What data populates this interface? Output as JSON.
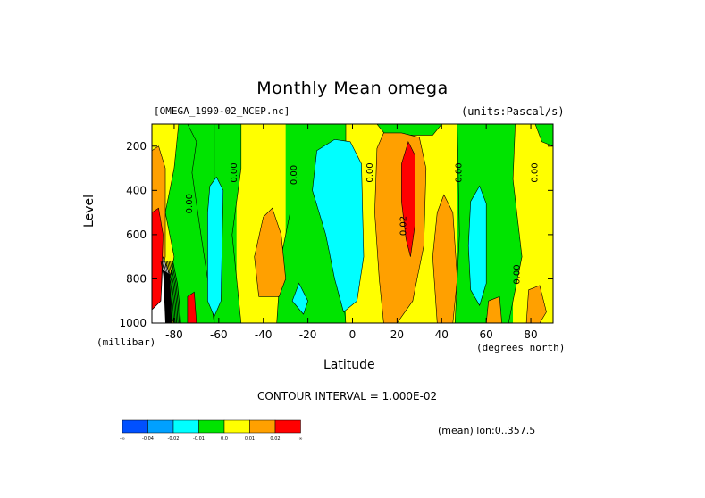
{
  "header": {
    "title": "Monthly Mean omega",
    "file": "[OMEGA_1990-02_NCEP.nc]",
    "units": "(units:Pascal/s)"
  },
  "footer": {
    "contour_interval": "CONTOUR INTERVAL = 1.000E-02",
    "mean_label": "(mean) lon:0..357.5"
  },
  "chart_data": {
    "type": "heatmap",
    "title": "Monthly Mean omega",
    "xlabel": "Latitude",
    "xunit": "(degrees_north)",
    "ylabel": "Level",
    "yunit": "(millibar)",
    "xlim": [
      -90,
      90
    ],
    "ylim": [
      1000,
      100
    ],
    "x_ticks": [
      "-80",
      "-60",
      "-40",
      "-20",
      "0",
      "20",
      "40",
      "60",
      "80"
    ],
    "x_tick_values": [
      -80,
      -60,
      -40,
      -20,
      0,
      20,
      40,
      60,
      80
    ],
    "y_ticks": [
      "200",
      "400",
      "600",
      "800",
      "1000"
    ],
    "y_tick_values": [
      200,
      400,
      600,
      800,
      1000
    ],
    "contour_labels": [
      {
        "text": "0.00",
        "lat": -72,
        "lev": 460
      },
      {
        "text": "0.00",
        "lat": -52,
        "lev": 320
      },
      {
        "text": "0.00",
        "lat": -25,
        "lev": 330
      },
      {
        "text": "0.00",
        "lat": 9,
        "lev": 320
      },
      {
        "text": "0.02",
        "lat": 24,
        "lev": 560
      },
      {
        "text": "0.00",
        "lat": 49,
        "lev": 320
      },
      {
        "text": "0.00",
        "lat": 83,
        "lev": 320
      },
      {
        "text": "0.00",
        "lat": 75,
        "lev": 780
      }
    ],
    "colorbar": {
      "colors": [
        "#0050ff",
        "#00a0ff",
        "#00ffff",
        "#00e400",
        "#ffff00",
        "#ffa000",
        "#ff0000"
      ],
      "labels": [
        "-∞",
        "-0.04",
        "-0.02",
        "-0.01",
        "0.0",
        "0.01",
        "0.02",
        "∞"
      ]
    },
    "bands": [
      {
        "lat": [
          -90,
          -85
        ],
        "lev": [
          100,
          1000
        ],
        "color": "#ffff00"
      },
      {
        "lat": [
          -85,
          -76
        ],
        "lev": [
          100,
          1000
        ],
        "color": "#ffff00"
      },
      {
        "lat": [
          -76,
          -52
        ],
        "lev": [
          100,
          1000
        ],
        "color": "#00e400"
      },
      {
        "lat": [
          -52,
          -30
        ],
        "lev": [
          100,
          1000
        ],
        "color": "#ffff00"
      },
      {
        "lat": [
          -30,
          -3
        ],
        "lev": [
          100,
          1000
        ],
        "color": "#00e400"
      },
      {
        "lat": [
          -3,
          10
        ],
        "lev": [
          100,
          1000
        ],
        "color": "#ffff00"
      },
      {
        "lat": [
          10,
          40
        ],
        "lev": [
          100,
          1000
        ],
        "color": "#ffff00"
      },
      {
        "lat": [
          40,
          47
        ],
        "lev": [
          100,
          1000
        ],
        "color": "#ffff00"
      },
      {
        "lat": [
          47,
          72
        ],
        "lev": [
          100,
          1000
        ],
        "color": "#00e400"
      },
      {
        "lat": [
          72,
          90
        ],
        "lev": [
          100,
          1000
        ],
        "color": "#ffff00"
      }
    ]
  }
}
